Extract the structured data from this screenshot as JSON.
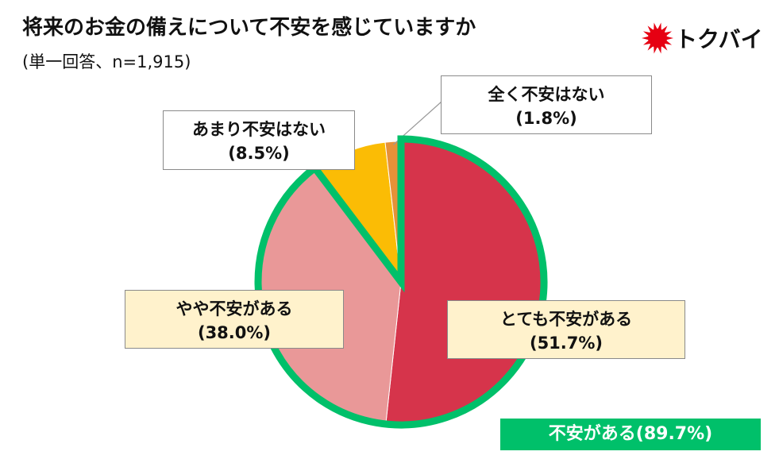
{
  "header": {
    "title": "将来のお金の備えについて不安を感じていますか",
    "subtitle": "(単一回答、n=1,915)"
  },
  "logo": {
    "text": "トクバイ",
    "mark_color": "#e60012"
  },
  "chart_data": {
    "type": "pie",
    "title": "将来のお金の備えについて不安を感じていますか",
    "start_angle_deg": 0,
    "direction": "clockwise",
    "slices": [
      {
        "label": "とても不安がある",
        "value": 51.7,
        "value_label": "(51.7%)",
        "color": "#d6344b"
      },
      {
        "label": "やや不安がある",
        "value": 38.0,
        "value_label": "(38.0%)",
        "color": "#e99898"
      },
      {
        "label": "あまり不安はない",
        "value": 8.5,
        "value_label": "(8.5%)",
        "color": "#fbbc05"
      },
      {
        "label": "全く不安はない",
        "value": 1.8,
        "value_label": "(1.8%)",
        "color": "#e69138"
      }
    ],
    "highlight": {
      "label": "不安がある(89.7%)",
      "value": 89.7,
      "covers": [
        "とても不安がある",
        "やや不安がある"
      ],
      "color": "#00c06a"
    }
  }
}
